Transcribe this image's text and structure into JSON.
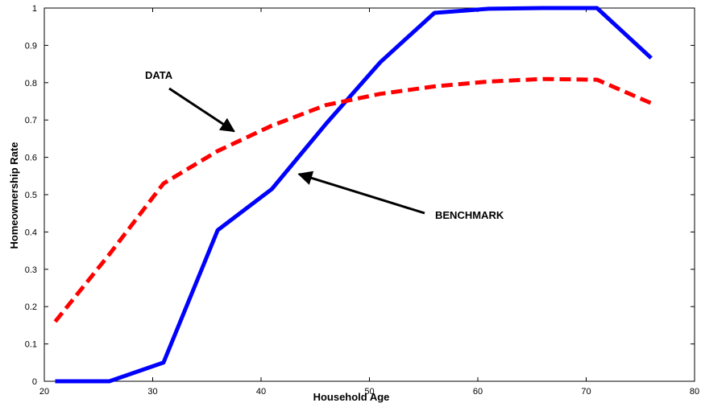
{
  "chart_data": {
    "type": "line",
    "title": "",
    "xlabel": "Household Age",
    "ylabel": "Homeownership Rate",
    "xlim": [
      20,
      80
    ],
    "ylim": [
      0,
      1
    ],
    "xticks": [
      20,
      30,
      40,
      50,
      60,
      70,
      80
    ],
    "yticks": [
      0,
      0.1,
      0.2,
      0.3,
      0.4,
      0.5,
      0.6,
      0.7,
      0.8,
      0.9,
      1
    ],
    "grid": false,
    "series": [
      {
        "name": "BENCHMARK",
        "color": "#0000ff",
        "style": "solid",
        "x": [
          21,
          26,
          31,
          36,
          41,
          46,
          51,
          56,
          61,
          66,
          71,
          76
        ],
        "y": [
          0,
          0,
          0.05,
          0.405,
          0.515,
          0.69,
          0.855,
          0.987,
          0.998,
          1.0,
          1.0,
          0.866
        ]
      },
      {
        "name": "DATA",
        "color": "#ff0000",
        "style": "dashed",
        "x": [
          21,
          26,
          31,
          36,
          41,
          46,
          51,
          56,
          61,
          66,
          71,
          76
        ],
        "y": [
          0.16,
          0.34,
          0.53,
          0.617,
          0.685,
          0.74,
          0.77,
          0.79,
          0.803,
          0.81,
          0.808,
          0.745
        ]
      }
    ],
    "annotations": [
      {
        "text": "DATA",
        "series": "DATA",
        "arrow_to": [
          37.5,
          0.67
        ]
      },
      {
        "text": "BENCHMARK",
        "series": "BENCHMARK",
        "arrow_to": [
          43.5,
          0.555
        ]
      }
    ]
  }
}
